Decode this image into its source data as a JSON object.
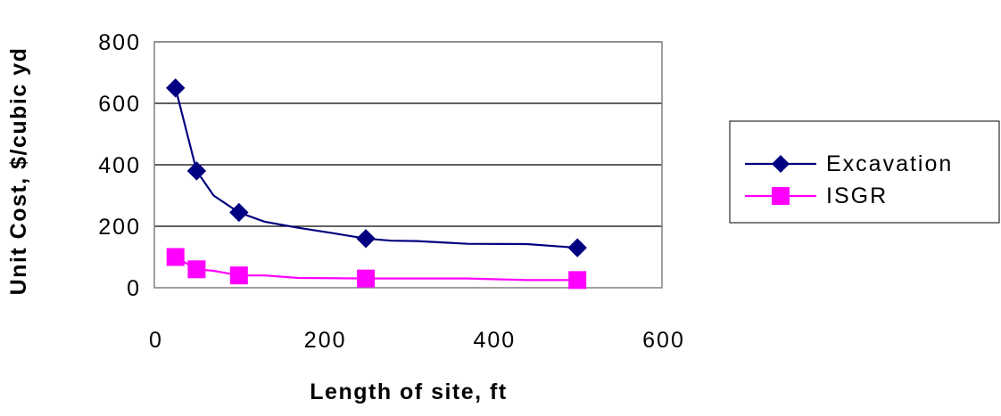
{
  "chart_data": {
    "type": "line",
    "xlabel": "Length of site, ft",
    "ylabel": "Unit Cost, $/cubic yd",
    "xlim": [
      0,
      600
    ],
    "ylim": [
      0,
      800
    ],
    "x_ticks": [
      "0",
      "200",
      "400",
      "600"
    ],
    "y_ticks": [
      "0",
      "200",
      "400",
      "600",
      "800"
    ],
    "grid": "horizontal",
    "legend_position": "right",
    "series": [
      {
        "name": "Excavation",
        "color": "#000080",
        "marker": "diamond",
        "points": [
          [
            25,
            650
          ],
          [
            50,
            380
          ],
          [
            100,
            245
          ],
          [
            250,
            160
          ],
          [
            500,
            130
          ]
        ],
        "line": [
          [
            25,
            650
          ],
          [
            38,
            510
          ],
          [
            50,
            380
          ],
          [
            70,
            300
          ],
          [
            100,
            245
          ],
          [
            130,
            215
          ],
          [
            170,
            195
          ],
          [
            210,
            178
          ],
          [
            250,
            160
          ],
          [
            280,
            153
          ],
          [
            310,
            152
          ],
          [
            370,
            143
          ],
          [
            440,
            142
          ],
          [
            500,
            130
          ]
        ]
      },
      {
        "name": "ISGR",
        "color": "#ff00ff",
        "marker": "square",
        "points": [
          [
            25,
            100
          ],
          [
            50,
            60
          ],
          [
            100,
            40
          ],
          [
            250,
            30
          ],
          [
            500,
            25
          ]
        ],
        "line": [
          [
            25,
            100
          ],
          [
            50,
            60
          ],
          [
            70,
            55
          ],
          [
            100,
            40
          ],
          [
            130,
            40
          ],
          [
            170,
            32
          ],
          [
            250,
            30
          ],
          [
            370,
            30
          ],
          [
            440,
            25
          ],
          [
            500,
            25
          ]
        ]
      }
    ]
  }
}
